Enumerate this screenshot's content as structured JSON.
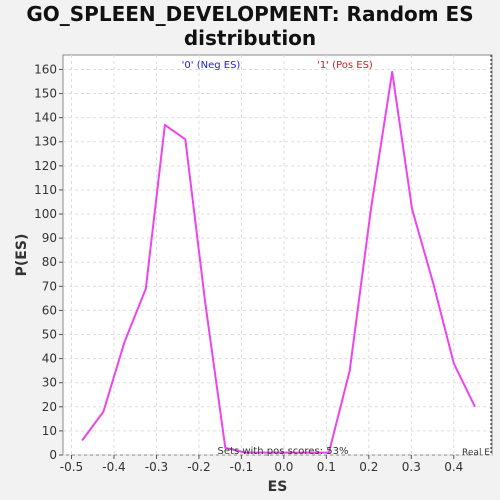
{
  "chart_data": {
    "type": "line",
    "title_line1": "GO_SPLEEN_DEVELOPMENT: Random ES",
    "title_line2": "distribution",
    "xlabel": "ES",
    "ylabel": "P(ES)",
    "xlim": [
      -0.52,
      0.49
    ],
    "ylim": [
      0,
      166
    ],
    "x_ticks": [
      -0.5,
      -0.4,
      -0.3,
      -0.2,
      -0.1,
      0.0,
      0.1,
      0.2,
      0.3,
      0.4
    ],
    "y_ticks": [
      0,
      10,
      20,
      30,
      40,
      50,
      60,
      70,
      80,
      90,
      100,
      110,
      120,
      130,
      140,
      150,
      160
    ],
    "grid": true,
    "series": [
      {
        "color": "#ee44ee",
        "x": [
          -0.475,
          -0.425,
          -0.375,
          -0.325,
          -0.28,
          -0.232,
          -0.185,
          -0.138,
          -0.09,
          -0.04,
          0.01,
          0.058,
          0.106,
          0.155,
          0.205,
          0.255,
          0.302,
          0.352,
          0.4,
          0.45
        ],
        "y": [
          6,
          18,
          47,
          69,
          137,
          131,
          63,
          3,
          1,
          1,
          1,
          1,
          1,
          35,
          102,
          159,
          102,
          71,
          38,
          20
        ]
      }
    ],
    "annotations": {
      "neg_label": "'0' (Neg ES)",
      "pos_label": "'1' (Pos ES)",
      "neg_color": "#2222cc",
      "pos_color": "#cc2222",
      "pos_scores_text": "Sets with pos scores: 53%",
      "real_label": "Real E"
    }
  }
}
